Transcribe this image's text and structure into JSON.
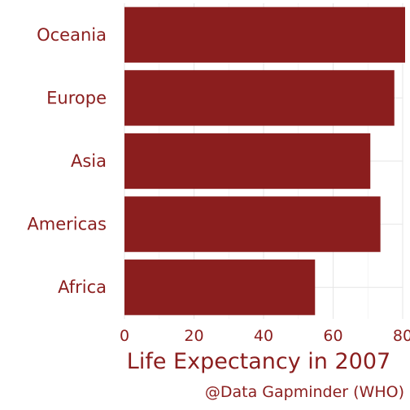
{
  "chart_data": {
    "type": "bar",
    "orientation": "horizontal",
    "categories": [
      "Africa",
      "Americas",
      "Asia",
      "Europe",
      "Oceania"
    ],
    "values": [
      54.8,
      73.6,
      70.7,
      77.6,
      80.7
    ],
    "xlabel": "Life Expectancy in 2007",
    "ylabel": "",
    "xlim": [
      0,
      80
    ],
    "x_ticks": [
      0,
      20,
      40,
      60,
      80
    ],
    "grid": true,
    "bar_color": "#8b1e1e",
    "caption": "@Data Gapminder (WHO)"
  }
}
